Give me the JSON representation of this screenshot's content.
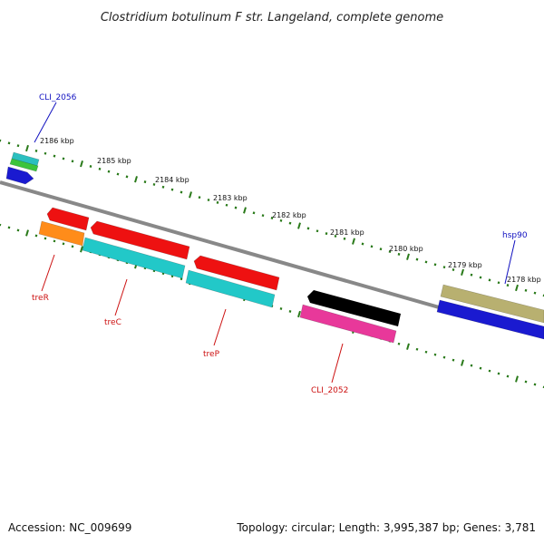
{
  "title": "Clostridium botulinum F str. Langeland, complete genome",
  "footer": {
    "accession": "Accession: NC_009699",
    "summary": "Topology: circular; Length: 3,995,387 bp; Genes: 3,781"
  },
  "colors": {
    "backbone": "#888888",
    "ticks": "#2a7a1a",
    "forward_label": "#1010c0",
    "reverse_label": "#cc1010"
  },
  "ruler": {
    "unit": "kbp",
    "labels": [
      "2186 kbp",
      "2185 kbp",
      "2184 kbp",
      "2183 kbp",
      "2182 kbp",
      "2181 kbp",
      "2180 kbp",
      "2179 kbp",
      "2178 kbp"
    ]
  },
  "genes": [
    {
      "label": "CLI_2056",
      "strand": "forward",
      "color": "#2bbfbf",
      "labeled": true
    },
    {
      "label": "",
      "strand": "forward",
      "color": "#3cc43c",
      "labeled": false
    },
    {
      "label": "",
      "strand": "forward",
      "color": "#1a1ad0",
      "labeled": false
    },
    {
      "label": "hsp90",
      "strand": "forward",
      "color": "#b8b070",
      "labeled": true
    },
    {
      "label": "",
      "strand": "forward",
      "color": "#1a1ad0",
      "labeled": false
    },
    {
      "label": "treR",
      "strand": "reverse",
      "color": "#ff8c1a",
      "labeled": true
    },
    {
      "label": "",
      "strand": "reverse",
      "color": "#ee1111",
      "labeled": false
    },
    {
      "label": "treC",
      "strand": "reverse",
      "color": "#22c8c8",
      "labeled": true
    },
    {
      "label": "",
      "strand": "reverse",
      "color": "#ee1111",
      "labeled": false
    },
    {
      "label": "treP",
      "strand": "reverse",
      "color": "#22c8c8",
      "labeled": true
    },
    {
      "label": "",
      "strand": "reverse",
      "color": "#ee1111",
      "labeled": false
    },
    {
      "label": "CLI_2052",
      "strand": "reverse",
      "color": "#e8389a",
      "labeled": true
    }
  ]
}
